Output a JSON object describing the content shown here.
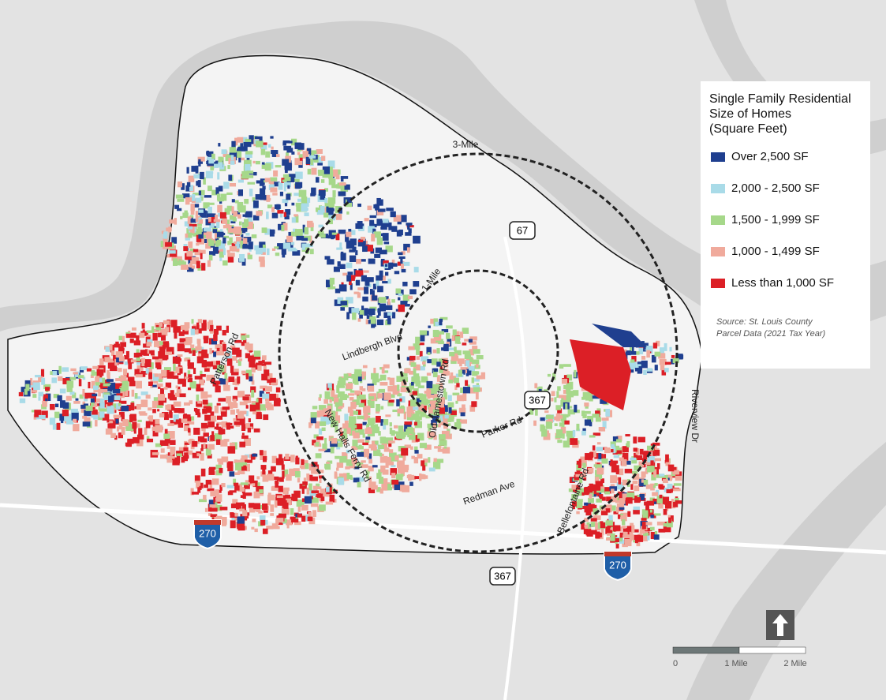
{
  "legend": {
    "title_lines": [
      "Single Family Residential",
      "Size of Homes",
      "(Square Feet)"
    ],
    "items": [
      {
        "label": "Over 2,500 SF",
        "color": "#1f3f8f"
      },
      {
        "label": "2,000 - 2,500 SF",
        "color": "#a9dbe8"
      },
      {
        "label": "1,500 - 1,999 SF",
        "color": "#a6d88a"
      },
      {
        "label": "1,000 - 1,499 SF",
        "color": "#f0aa9c"
      },
      {
        "label": "Less than 1,000 SF",
        "color": "#dc1f26"
      }
    ],
    "source_lines": [
      "Source: St. Louis County",
      "Parcel Data (2021 Tax Year)"
    ]
  },
  "rings": [
    {
      "label": "3-Mile"
    },
    {
      "label": "1-Mile"
    }
  ],
  "roads": [
    {
      "label": "Lindbergh Blvd"
    },
    {
      "label": "Patterson Rd"
    },
    {
      "label": "New Halls Ferry Rd"
    },
    {
      "label": "Old Jamestown Rd"
    },
    {
      "label": "Parker Rd"
    },
    {
      "label": "Redman Ave"
    },
    {
      "label": "Bellefontaine Rd"
    },
    {
      "label": "Riverview Dr"
    }
  ],
  "shields": [
    {
      "label": "67",
      "type": "state"
    },
    {
      "label": "367",
      "type": "state"
    },
    {
      "label": "367",
      "type": "state"
    },
    {
      "label": "270",
      "type": "interstate"
    },
    {
      "label": "270",
      "type": "interstate"
    }
  ],
  "scale_bar": {
    "labels": [
      "0",
      "1 Mile",
      "2 Mile"
    ]
  }
}
